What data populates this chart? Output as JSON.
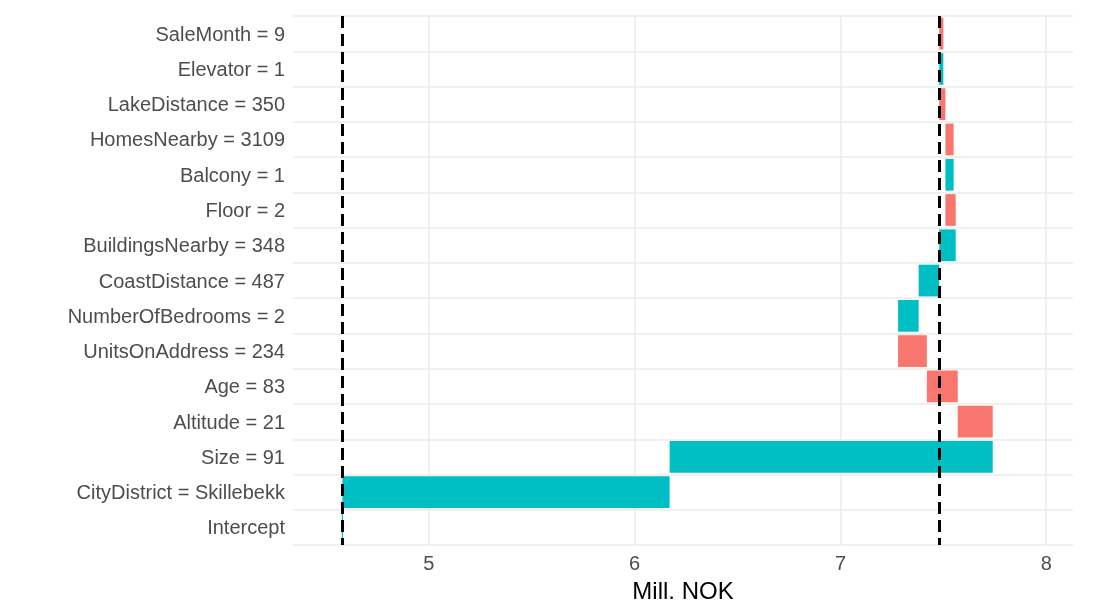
{
  "chart_data": {
    "type": "bar",
    "orientation": "horizontal",
    "xlabel": "Mill. NOK",
    "categories": [
      "SaleMonth = 9",
      "Elevator = 1",
      "LakeDistance = 350",
      "HomesNearby = 3109",
      "Balcony = 1",
      "Floor = 2",
      "BuildingsNearby = 348",
      "CoastDistance = 487",
      "NumberOfBedrooms = 2",
      "UnitsOnAddress = 234",
      "Age = 83",
      "Altitude = 21",
      "Size = 91",
      "CityDistrict = Skillebekk",
      "Intercept"
    ],
    "base": [
      7.5,
      7.48,
      7.51,
      7.55,
      7.51,
      7.56,
      7.48,
      7.38,
      7.28,
      7.42,
      7.57,
      7.74,
      6.17,
      4.58,
      4.58
    ],
    "values": [
      -0.02,
      0.02,
      -0.03,
      -0.04,
      0.04,
      -0.05,
      0.08,
      0.1,
      0.1,
      -0.14,
      -0.15,
      -0.17,
      1.57,
      1.59,
      0
    ],
    "colors": [
      "#f8766d",
      "#00bfc4",
      "#f8766d",
      "#f8766d",
      "#00bfc4",
      "#f8766d",
      "#00bfc4",
      "#00bfc4",
      "#00bfc4",
      "#f8766d",
      "#f8766d",
      "#f8766d",
      "#00bfc4",
      "#00bfc4",
      "#00bfc4"
    ],
    "xlim": [
      4.34,
      8.13
    ],
    "xticks": [
      5,
      6,
      7,
      8
    ],
    "grid": true,
    "ref_lines": [
      {
        "axis": "x",
        "value": 4.58,
        "color": "#000000",
        "line_style": "dashed"
      },
      {
        "axis": "x",
        "value": 7.48,
        "color": "#000000",
        "line_style": "dashed"
      }
    ]
  }
}
